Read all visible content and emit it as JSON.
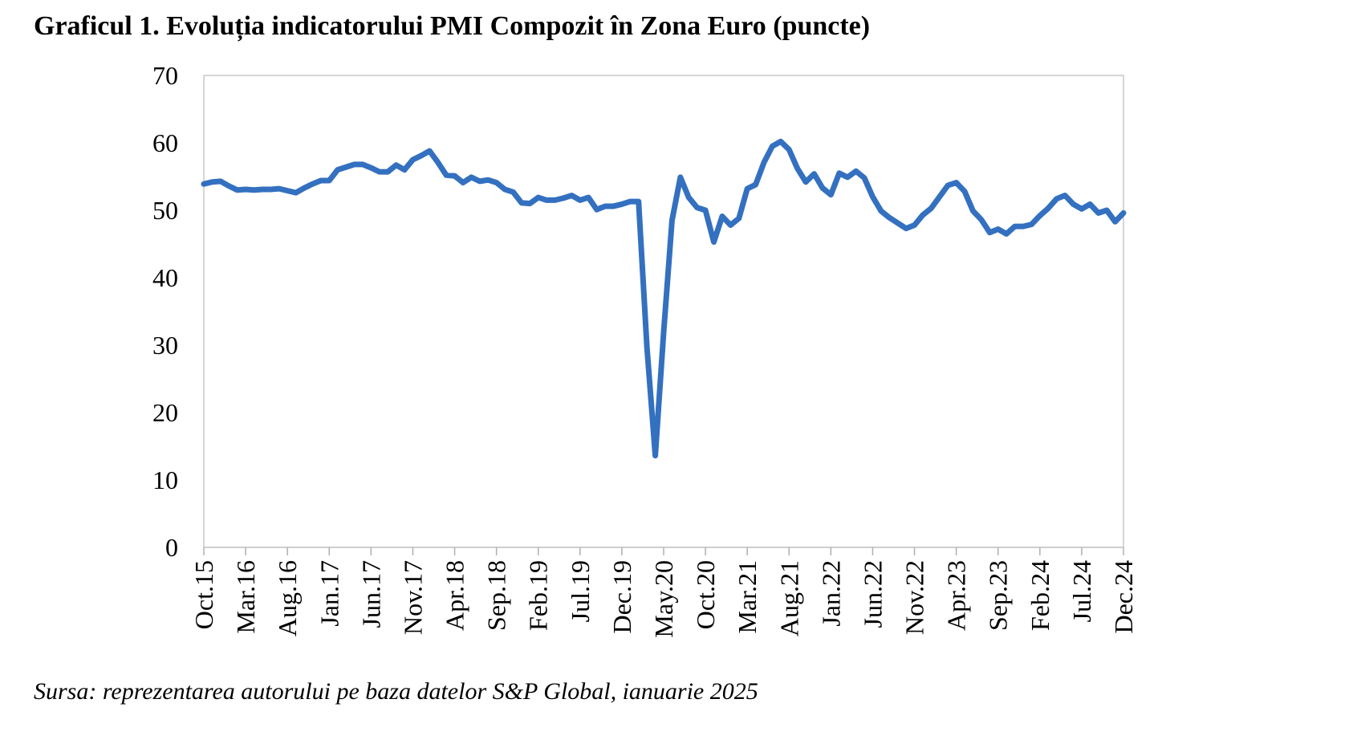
{
  "chart_data": {
    "type": "line",
    "title": "Graficul 1. Evoluția indicatorului PMI Compozit în Zona Euro (puncte)",
    "xlabel": "",
    "ylabel": "",
    "ylim": [
      0,
      70
    ],
    "yticks": [
      0,
      10,
      20,
      30,
      40,
      50,
      60,
      70
    ],
    "xtick_labels": [
      "Oct.15",
      "Mar.16",
      "Aug.16",
      "Jan.17",
      "Jun.17",
      "Nov.17",
      "Apr.18",
      "Sep.18",
      "Feb.19",
      "Jul.19",
      "Dec.19",
      "May.20",
      "Oct.20",
      "Mar.21",
      "Aug.21",
      "Jan.22",
      "Jun.22",
      "Nov.22",
      "Apr.23",
      "Sep.23",
      "Feb.24",
      "Jul.24",
      "Dec.24"
    ],
    "grid": false,
    "legend": "none",
    "line_color": "#3470c0",
    "x_start": "Oct.15",
    "x_end": "Dec.24",
    "series": [
      {
        "values": [
          53.9,
          54.2,
          54.3,
          53.6,
          53.0,
          53.1,
          53.0,
          53.1,
          53.1,
          53.2,
          52.9,
          52.6,
          53.3,
          53.9,
          54.4,
          54.4,
          56.0,
          56.4,
          56.8,
          56.8,
          56.3,
          55.7,
          55.7,
          56.7,
          56.0,
          57.5,
          58.1,
          58.8,
          57.1,
          55.2,
          55.1,
          54.1,
          54.9,
          54.3,
          54.5,
          54.1,
          53.1,
          52.7,
          51.1,
          51.0,
          51.9,
          51.5,
          51.5,
          51.8,
          52.2,
          51.5,
          51.9,
          50.1,
          50.6,
          50.6,
          50.9,
          51.3,
          51.3,
          29.7,
          13.6,
          31.9,
          48.5,
          54.9,
          51.9,
          50.4,
          50.0,
          45.3,
          49.1,
          47.8,
          48.8,
          53.2,
          53.8,
          57.1,
          59.5,
          60.2,
          59.0,
          56.2,
          54.2,
          55.4,
          53.3,
          52.3,
          55.5,
          54.9,
          55.8,
          54.8,
          52.0,
          49.9,
          48.9,
          48.1,
          47.3,
          47.8,
          49.3,
          50.3,
          52.0,
          53.7,
          54.1,
          52.8,
          49.9,
          48.6,
          46.7,
          47.2,
          46.5,
          47.6,
          47.6,
          47.9,
          49.2,
          50.3,
          51.7,
          52.2,
          50.9,
          50.2,
          50.9,
          49.6,
          50.0,
          48.3,
          49.6
        ]
      }
    ],
    "source_note": "Sursa: reprezentarea autorului pe baza datelor S&P Global, ianuarie 2025"
  }
}
